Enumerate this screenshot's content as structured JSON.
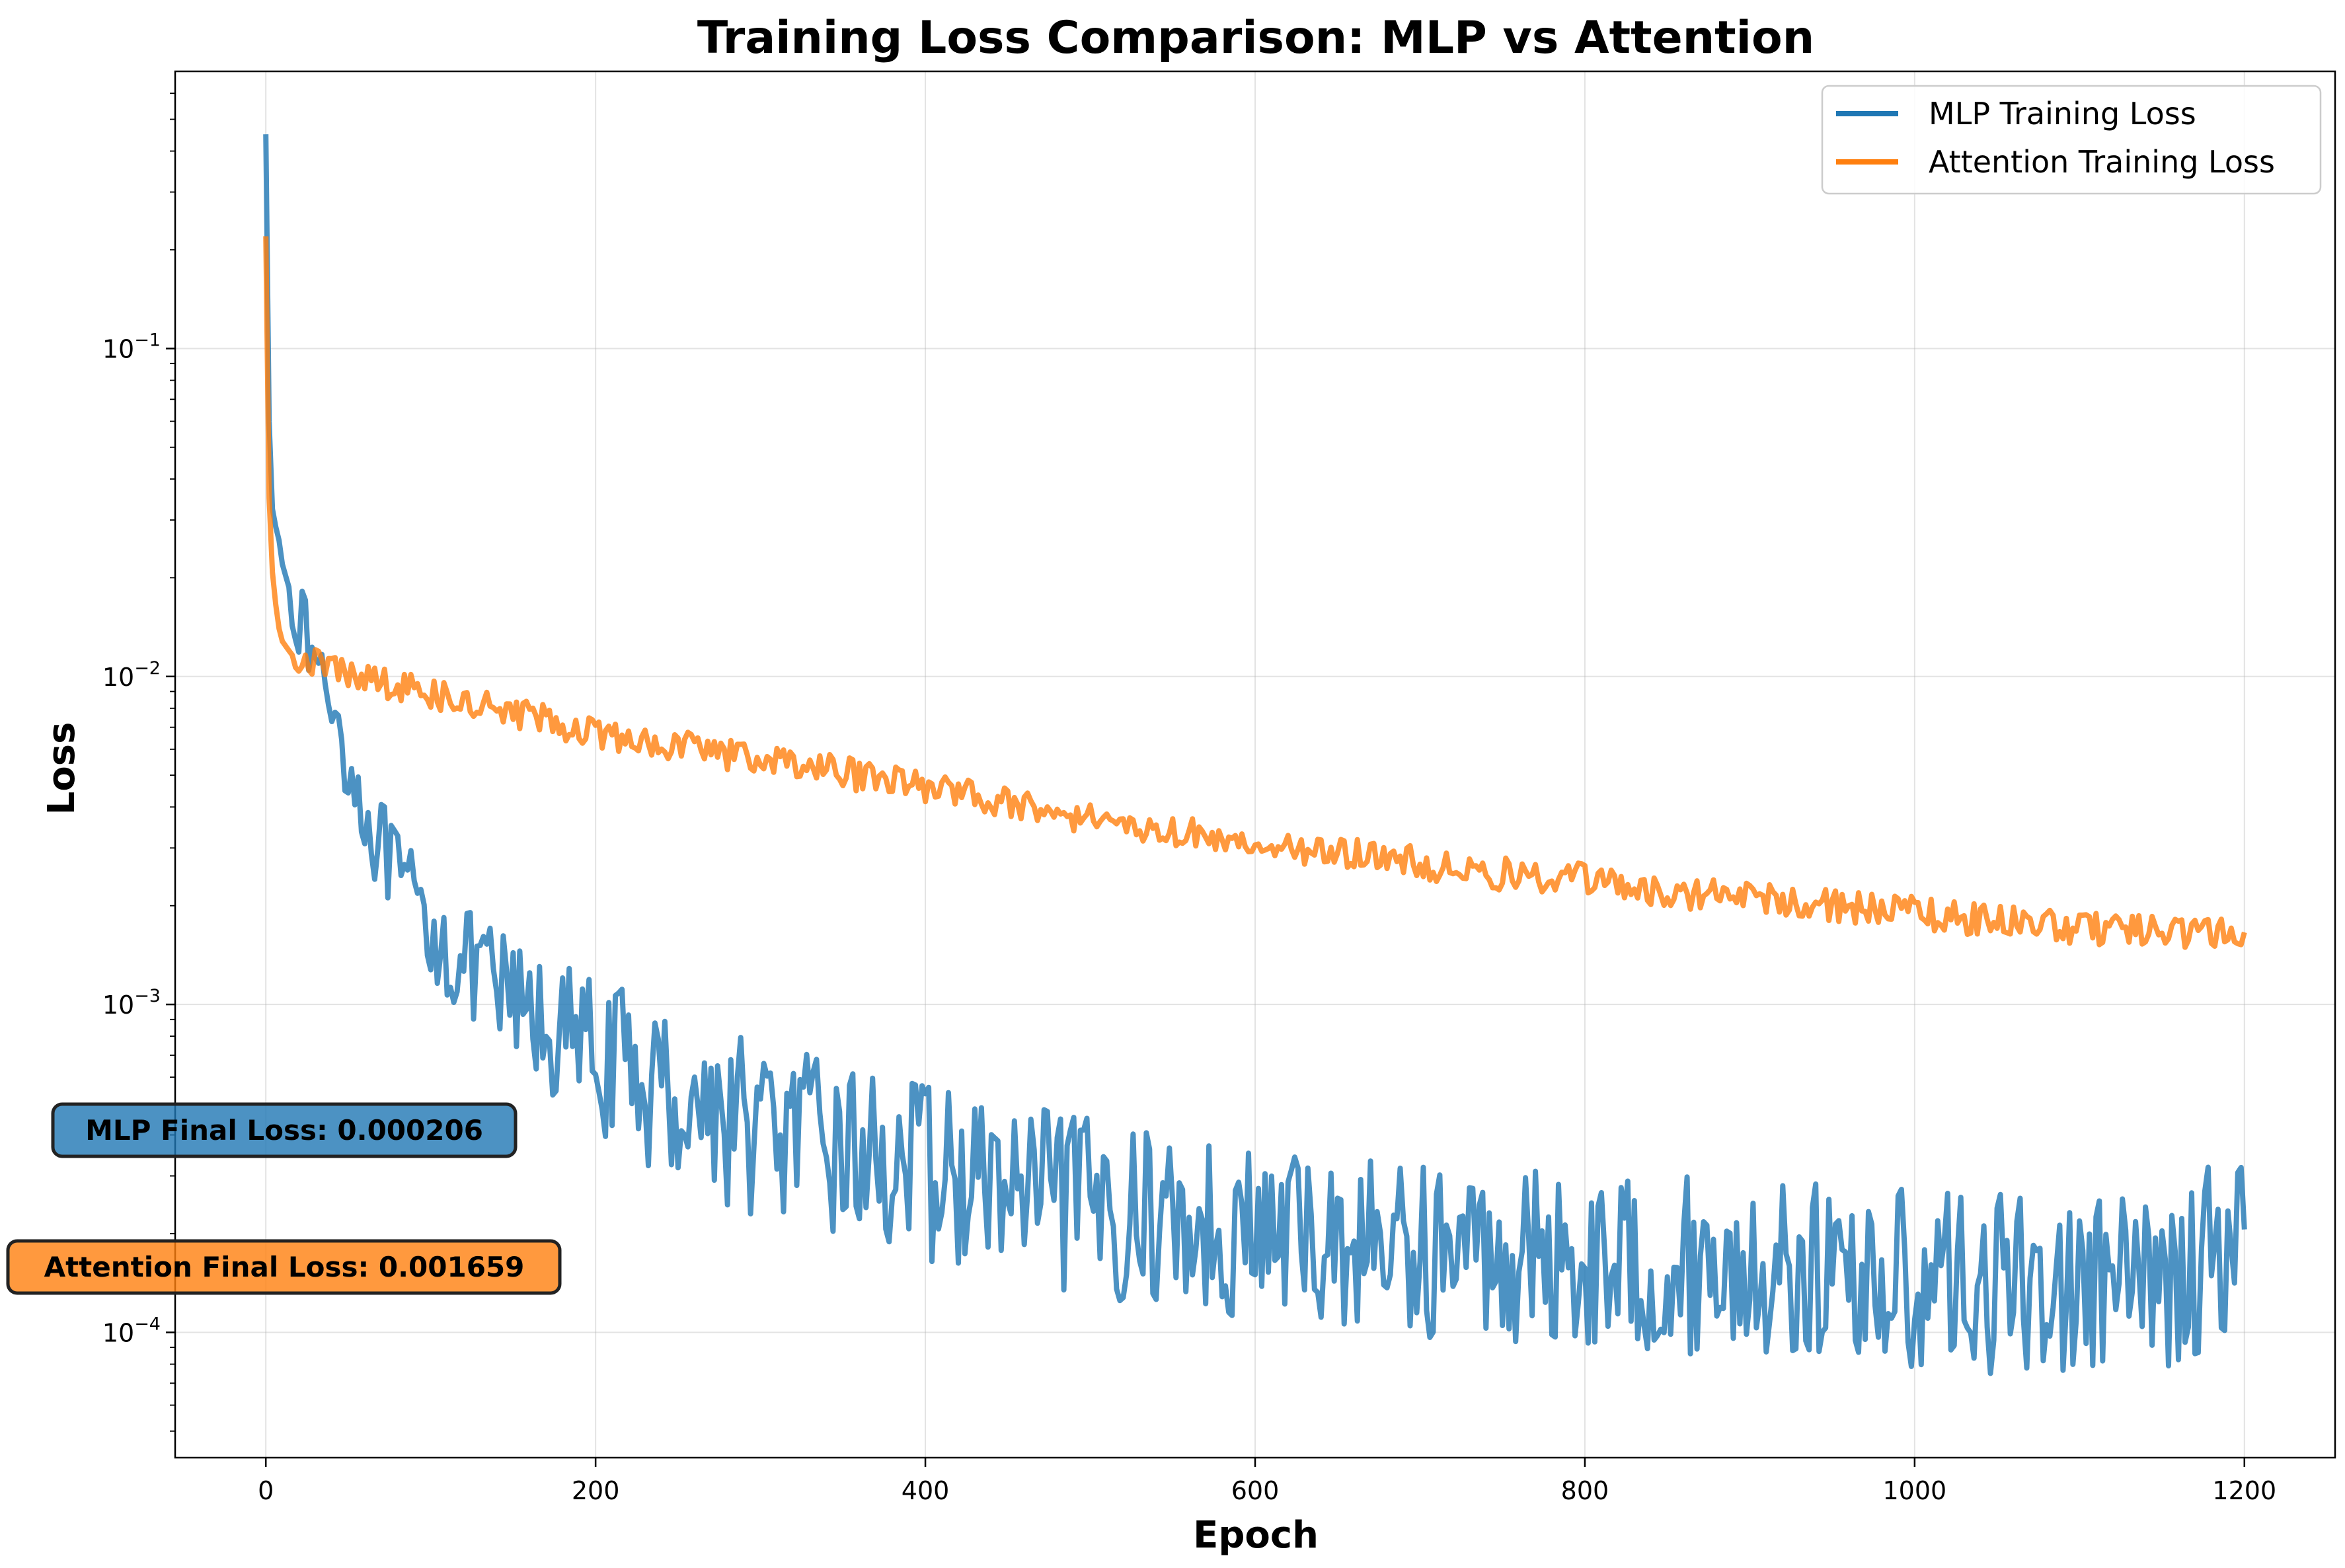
{
  "chart_data": {
    "type": "line",
    "title": "Training Loss Comparison: MLP vs Attention",
    "xlabel": "Epoch",
    "ylabel": "Loss",
    "xlim": [
      -55,
      1255
    ],
    "ylim": [
      4.15e-05,
      0.7
    ],
    "yscale": "log",
    "grid": true,
    "legend_position": "top-right",
    "x_ticks": [
      0,
      200,
      400,
      600,
      800,
      1000,
      1200
    ],
    "x_tick_labels": [
      "0",
      "200",
      "400",
      "600",
      "800",
      "1000",
      "1200"
    ],
    "y_ticks": [
      0.0001,
      0.001,
      0.01,
      0.1
    ],
    "y_tick_labels": [
      {
        "base": "10",
        "exp": "−4"
      },
      {
        "base": "10",
        "exp": "−3"
      },
      {
        "base": "10",
        "exp": "−2"
      },
      {
        "base": "10",
        "exp": "−1"
      }
    ],
    "series": [
      {
        "name": "MLP Training Loss",
        "color": "#1f77b4",
        "x": [
          0,
          1,
          2,
          3,
          5,
          8,
          10,
          15,
          20,
          25,
          30,
          40,
          50,
          60,
          70,
          80,
          90,
          100,
          110,
          120,
          130,
          140,
          150,
          160,
          170,
          180,
          190,
          200,
          220,
          240,
          260,
          280,
          300,
          320,
          340,
          360,
          380,
          400,
          450,
          500,
          550,
          600,
          650,
          700,
          750,
          800,
          850,
          900,
          950,
          1000,
          1050,
          1100,
          1150,
          1200
        ],
        "values": [
          0.45,
          0.15,
          0.06,
          0.035,
          0.03,
          0.026,
          0.022,
          0.018,
          0.015,
          0.013,
          0.011,
          0.0085,
          0.0055,
          0.0038,
          0.003,
          0.0024,
          0.002,
          0.0017,
          0.0015,
          0.0013,
          0.0012,
          0.0011,
          0.001,
          0.00092,
          0.00085,
          0.0008,
          0.00075,
          0.0007,
          0.00062,
          0.00055,
          0.0005,
          0.00046,
          0.00042,
          0.00039,
          0.00037,
          0.00035,
          0.00033,
          0.00031,
          0.00027,
          0.00024,
          0.00022,
          0.0002,
          0.00019,
          0.00018,
          0.000172,
          0.000165,
          0.00016,
          0.000155,
          0.00015,
          0.000145,
          0.00014,
          0.000138,
          0.000135,
          0.000206
        ]
      },
      {
        "name": "Attention Training Loss",
        "color": "#ff7f0e",
        "x": [
          0,
          1,
          2,
          3,
          5,
          8,
          10,
          15,
          20,
          30,
          50,
          100,
          150,
          200,
          250,
          300,
          350,
          400,
          450,
          500,
          550,
          600,
          650,
          700,
          750,
          800,
          850,
          900,
          950,
          1000,
          1050,
          1100,
          1150,
          1200
        ],
        "values": [
          0.22,
          0.06,
          0.035,
          0.024,
          0.018,
          0.014,
          0.0128,
          0.0118,
          0.0115,
          0.011,
          0.0102,
          0.0088,
          0.0077,
          0.0068,
          0.0062,
          0.0056,
          0.0051,
          0.0046,
          0.0041,
          0.0037,
          0.0034,
          0.0031,
          0.0029,
          0.0027,
          0.0025,
          0.0024,
          0.0022,
          0.0021,
          0.002,
          0.0019,
          0.0018,
          0.0017,
          0.00165,
          0.001659
        ]
      }
    ],
    "annotations": [
      {
        "text": "MLP Final Loss: 0.000206",
        "color": "#1f77b4"
      },
      {
        "text": "Attention Final Loss: 0.001659",
        "color": "#ff7f0e"
      }
    ]
  }
}
